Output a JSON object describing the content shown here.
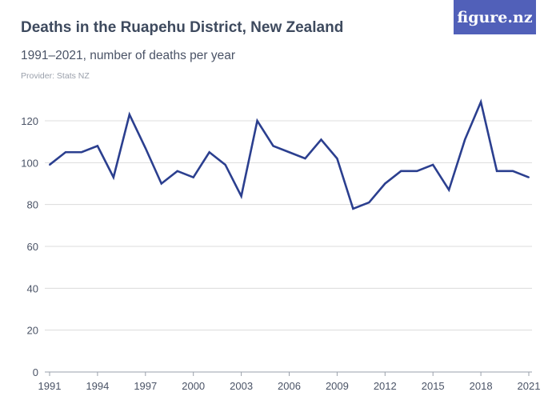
{
  "header": {
    "title": "Deaths in the Ruapehu District, New Zealand",
    "subtitle": "1991–2021, number of deaths per year",
    "provider": "Provider: Stats NZ",
    "logo": "figure.nz"
  },
  "colors": {
    "line": "#2b3f8f",
    "grid": "#dcdcdc",
    "logo_bg": "#5160b9"
  },
  "chart_data": {
    "type": "line",
    "title": "Deaths in the Ruapehu District, New Zealand",
    "subtitle": "1991–2021, number of deaths per year",
    "xlabel": "",
    "ylabel": "",
    "x": [
      1991,
      1992,
      1993,
      1994,
      1995,
      1996,
      1997,
      1998,
      1999,
      2000,
      2001,
      2002,
      2003,
      2004,
      2005,
      2006,
      2007,
      2008,
      2009,
      2010,
      2011,
      2012,
      2013,
      2014,
      2015,
      2016,
      2017,
      2018,
      2019,
      2020,
      2021
    ],
    "values": [
      99,
      105,
      105,
      108,
      93,
      123,
      107,
      90,
      96,
      93,
      105,
      99,
      84,
      120,
      108,
      105,
      102,
      111,
      102,
      78,
      81,
      90,
      96,
      96,
      99,
      87,
      111,
      129,
      96,
      96,
      93
    ],
    "ylim": [
      0,
      130
    ],
    "yticks": [
      "0",
      "20",
      "40",
      "60",
      "80",
      "100",
      "120"
    ],
    "xticks": [
      "1991",
      "1994",
      "1997",
      "2000",
      "2003",
      "2006",
      "2009",
      "2012",
      "2015",
      "2018",
      "2021"
    ],
    "grid": true
  }
}
